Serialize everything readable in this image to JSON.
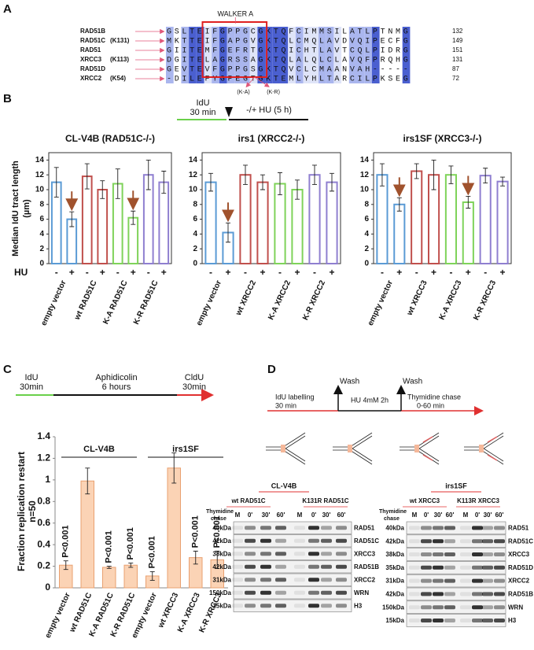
{
  "panel_labels": [
    "A",
    "B",
    "C",
    "D"
  ],
  "alignment": {
    "motif_label": "WALKER A",
    "mutation_labels": [
      "(K-A)",
      "(K-R)"
    ],
    "rows": [
      {
        "name": "RAD51B",
        "mutant": null,
        "sequence": "GSLTEIFGPPGCGKTQFCIMMSILATLPTNMG",
        "end": 132
      },
      {
        "name": "RAD51C",
        "mutant": "(K131)",
        "sequence": "MKTTEIFGAPGVGKTQLCMQLAVDVQIPECFG",
        "end": 149
      },
      {
        "name": "RAD51",
        "mutant": null,
        "sequence": "GIITEMFGEFRTGKTQICHTLAVTCQLPIDRG",
        "end": 151
      },
      {
        "name": "XRCC3",
        "mutant": "(K113)",
        "sequence": "DGITELAGRSSAGKTQLALQLCLAVQFPRQHG",
        "end": 131
      },
      {
        "name": "RAD51D",
        "mutant": null,
        "sequence": "GEVTEVFGPPGSGKTQVCLCMAANVAH-----",
        "end": 87
      },
      {
        "name": "XRCC2",
        "mutant": "(K54)",
        "sequence": "-DILEFYGPEGTGKTEMLYHLTARCILPKSEG",
        "end": 72
      }
    ]
  },
  "timeline_b": {
    "pulse": "IdU",
    "pulse_time": "30 min",
    "treatment": "-/+ HU (5 h)"
  },
  "hu_label": "HU",
  "chart_data": [
    {
      "type": "bar",
      "title": "CL-V4B (RAD51C-/-)",
      "ylabel": [
        "Median IdU tract length",
        "(µm)"
      ],
      "categories": [
        "-",
        "+",
        "-",
        "+",
        "-",
        "+",
        "-",
        "+"
      ],
      "groups": [
        "empty vector",
        "wt RAD51C",
        "K-A RAD51C",
        "K-R RAD51C"
      ],
      "values": [
        11,
        6,
        11.8,
        10,
        10.8,
        6.2,
        12,
        11
      ],
      "errors": [
        2,
        1,
        1.7,
        1.2,
        2,
        0.9,
        2,
        1.5
      ],
      "colors": [
        "#5b9bd5",
        "#5b9bd5",
        "#c0504d",
        "#c0504d",
        "#7fd35a",
        "#7fd35a",
        "#8f7fd0",
        "#8f7fd0"
      ],
      "ylim": [
        0,
        15
      ],
      "yticks": [
        0,
        2,
        4,
        6,
        8,
        10,
        12,
        14
      ]
    },
    {
      "type": "bar",
      "title": "irs1 (XRCC2-/-)",
      "categories": [
        "-",
        "+",
        "-",
        "+",
        "-",
        "+",
        "-",
        "+"
      ],
      "groups": [
        "empty vector",
        "wt XRCC2",
        "K-A XRCC2",
        "K-R XRCC2"
      ],
      "values": [
        11,
        4.2,
        12,
        11,
        10.8,
        10,
        12,
        11
      ],
      "errors": [
        1.2,
        1.3,
        1.3,
        1,
        1.5,
        1.3,
        1.3,
        1.2
      ],
      "colors": [
        "#5b9bd5",
        "#5b9bd5",
        "#c0504d",
        "#c0504d",
        "#7fd35a",
        "#7fd35a",
        "#8f7fd0",
        "#8f7fd0"
      ],
      "ylim": [
        0,
        15
      ],
      "yticks": [
        0,
        2,
        4,
        6,
        8,
        10,
        12,
        14
      ]
    },
    {
      "type": "bar",
      "title": "irs1SF (XRCC3-/-)",
      "categories": [
        "-",
        "+",
        "-",
        "+",
        "-",
        "+",
        "-",
        "+"
      ],
      "groups": [
        "empty vector",
        "wt XRCC3",
        "K-A XRCC3",
        "K-R XRCC3"
      ],
      "values": [
        12,
        8,
        12.5,
        12,
        12,
        8.3,
        11.9,
        11.1
      ],
      "errors": [
        1.5,
        0.9,
        1,
        2,
        1.2,
        0.8,
        1,
        0.6
      ],
      "colors": [
        "#5b9bd5",
        "#5b9bd5",
        "#c0504d",
        "#c0504d",
        "#7fd35a",
        "#7fd35a",
        "#8f7fd0",
        "#8f7fd0"
      ],
      "ylim": [
        0,
        15
      ],
      "yticks": [
        0,
        2,
        4,
        6,
        8,
        10,
        12,
        14
      ]
    },
    {
      "type": "bar",
      "ylabel": [
        "Fraction replication restart",
        "n=50"
      ],
      "categories": [
        "empty vector",
        "wt RAD51C",
        "K-A RAD51C",
        "K-R RAD51C",
        "empty vector",
        "wt XRCC3",
        "K-A XRCC3",
        "K-R XRCC3"
      ],
      "groups": [
        "CL-V4B",
        "irs1SF"
      ],
      "values": [
        0.21,
        0.99,
        0.19,
        0.21,
        0.11,
        1.11,
        0.28,
        0.26
      ],
      "errors": [
        0.04,
        0.12,
        0.01,
        0.02,
        0.04,
        0.14,
        0.06,
        0.08
      ],
      "p_values": [
        "P<0.001",
        null,
        "P<0.001",
        "P<0.001",
        "P<0.001",
        null,
        "P<0.001",
        "P<0.001"
      ],
      "color": "#fbd3b5",
      "ylim": [
        0,
        1.4
      ],
      "yticks": [
        0,
        0.2,
        0.4,
        0.6,
        0.8,
        1,
        1.2,
        1.4
      ]
    }
  ],
  "timeline_c": {
    "pulse1": "IdU",
    "pulse1_time": "30min",
    "treatment": "Aphidicolin",
    "treatment_time": "6 hours",
    "pulse2": "CldU",
    "pulse2_time": "30min"
  },
  "timeline_d": {
    "pulse": "IdU labelling",
    "pulse_time": "30 min",
    "wash": "Wash",
    "treatment": "HU 4mM 2h",
    "chase": "Thymidine chase",
    "chase_time": "0-60 min"
  },
  "blots": [
    {
      "cell_line": "CL-V4B",
      "groups": [
        "wt RAD51C",
        "K131R RAD51C"
      ],
      "chase_label": [
        "Thymidine",
        "chase"
      ],
      "lanes": [
        "M",
        "0'",
        "30'",
        "60'",
        "M",
        "0'",
        "30'",
        "60'"
      ],
      "rows": [
        {
          "size": "40kDa",
          "protein": "RAD51"
        },
        {
          "size": "42kDa",
          "protein": "RAD51C"
        },
        {
          "size": "38kDa",
          "protein": "XRCC3"
        },
        {
          "size": "42kDa",
          "protein": "RAD51B"
        },
        {
          "size": "31kDa",
          "protein": "XRCC2"
        },
        {
          "size": "150kDa",
          "protein": "WRN"
        },
        {
          "size": "15kDa",
          "protein": "H3"
        }
      ]
    },
    {
      "cell_line": "irs1SF",
      "groups": [
        "wt XRCC3",
        "K113R XRCC3"
      ],
      "chase_label": [
        "Thymidine",
        "chase"
      ],
      "lanes": [
        "M",
        "0'",
        "30'",
        "60'",
        "M",
        "0'",
        "30'",
        "60'"
      ],
      "rows": [
        {
          "size": "40kDa",
          "protein": "RAD51"
        },
        {
          "size": "42kDa",
          "protein": "RAD51C"
        },
        {
          "size": "38kDa",
          "protein": "XRCC3"
        },
        {
          "size": "35kDa",
          "protein": "RAD51D"
        },
        {
          "size": "31kDa",
          "protein": "XRCC2"
        },
        {
          "size": "42kDa",
          "protein": "RAD51B"
        },
        {
          "size": "150kDa",
          "protein": "WRN"
        },
        {
          "size": "15kDa",
          "protein": "H3"
        }
      ]
    }
  ]
}
